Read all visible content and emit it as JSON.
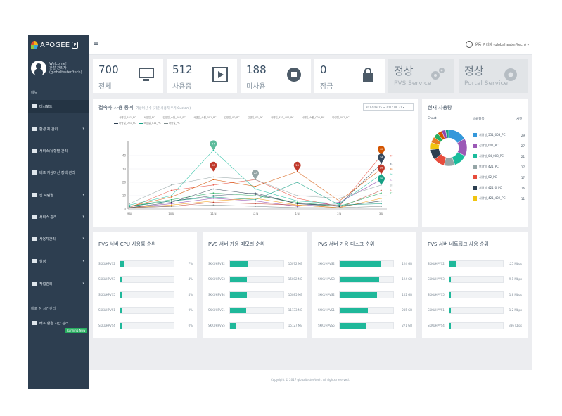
{
  "app": {
    "logo_text": "APOGEE",
    "logo_badge": "P"
  },
  "user": {
    "greeting": "Welcome!",
    "name": "관찰 관리자",
    "id": "(globaltester/tech)"
  },
  "sidebar": {
    "menu_label": "메뉴",
    "items": [
      {
        "label": "대시보드",
        "has_children": false,
        "active": true
      },
      {
        "label": "환경 제 관리",
        "has_children": true,
        "active": false
      },
      {
        "label": "서비스/유형별 관리",
        "has_children": false,
        "active": false
      },
      {
        "label": "배포 가상머신 정책 관리",
        "has_children": false,
        "active": false
      },
      {
        "label": "접 시템별",
        "has_children": true,
        "active": false
      },
      {
        "label": "서비스 관리",
        "has_children": true,
        "active": false
      },
      {
        "label": "사용자관리",
        "has_children": true,
        "active": false
      },
      {
        "label": "설정",
        "has_children": true,
        "active": false
      },
      {
        "label": "작업관리",
        "has_children": true,
        "active": false
      }
    ],
    "section2_label": "배포 정 시간관리",
    "section2_item": "배포 환경 시간 관리",
    "running_badge": "Running Now"
  },
  "topbar": {
    "user_label": "운동 관리자 (globaltester/tech) ▾"
  },
  "stats": [
    {
      "num": "700",
      "label": "전체"
    },
    {
      "num": "512",
      "label": "사용중"
    },
    {
      "num": "188",
      "label": "미사용"
    },
    {
      "num": "0",
      "label": "잠금"
    },
    {
      "num": "정상",
      "label": "PVS Service"
    },
    {
      "num": "정상",
      "label": "Portal Service"
    }
  ],
  "chart_panel": {
    "title": "접속자 사용 통계",
    "subtitle": "가상머신 수 (기준 사용자 주기 Custom)",
    "date_range": "2017.09.15 ~ 2017.09.21 ▾"
  },
  "chart_data": {
    "type": "line",
    "categories": [
      "9월",
      "10월",
      "11월",
      "12월",
      "1월",
      "2월",
      "3월"
    ],
    "ylim": [
      0,
      50
    ],
    "yticks": [
      0,
      10,
      20,
      30,
      40
    ],
    "grid": true,
    "legend_position": "top",
    "series": [
      {
        "name": "서영일_551_PC",
        "color": "#e74c3c",
        "values": [
          1,
          14,
          18,
          22,
          8,
          2,
          40
        ]
      },
      {
        "name": "서영일_PC",
        "color": "#34495e",
        "values": [
          2,
          6,
          10,
          12,
          4,
          3,
          34
        ]
      },
      {
        "name": "김영일_소원_001_PC",
        "color": "#1abc9c",
        "values": [
          3,
          10,
          44,
          15,
          6,
          4,
          26
        ]
      },
      {
        "name": "서영일_소원_001_PC",
        "color": "#8e44ad",
        "values": [
          1,
          4,
          8,
          6,
          2,
          5,
          22
        ]
      },
      {
        "name": "김영일_00_PC",
        "color": "#d35400",
        "values": [
          2,
          9,
          22,
          17,
          28,
          6,
          30
        ]
      },
      {
        "name": "김영일_02_PC",
        "color": "#95a5a6",
        "values": [
          4,
          18,
          24,
          22,
          10,
          8,
          18
        ]
      },
      {
        "name": "서영일_421_402_PC",
        "color": "#c0392b",
        "values": [
          1,
          2,
          5,
          4,
          3,
          1,
          14
        ]
      },
      {
        "name": "서영일_소원_002_PC",
        "color": "#27ae60",
        "values": [
          2,
          7,
          12,
          10,
          5,
          2,
          12
        ]
      },
      {
        "name": "다영일_002_PC",
        "color": "#f39c12",
        "values": [
          1,
          3,
          6,
          8,
          3,
          1,
          8
        ]
      },
      {
        "name": "다영일_001_PC",
        "color": "#2c3e50",
        "values": [
          1,
          5,
          15,
          11,
          4,
          2,
          6
        ]
      },
      {
        "name": "보영일_011_PC",
        "color": "#16a085",
        "values": [
          2,
          6,
          9,
          7,
          20,
          3,
          4
        ]
      },
      {
        "name": "다영일_PC",
        "color": "#7f8c8d",
        "values": [
          1,
          2,
          3,
          2,
          1,
          1,
          2
        ]
      }
    ],
    "markers": [
      {
        "label": "44",
        "x": "11월",
        "y": 44,
        "color": "#5dbb9b"
      },
      {
        "label": "28",
        "x": "11월",
        "y": 28,
        "color": "#c0392b"
      },
      {
        "label": "22",
        "x": "12월",
        "y": 22,
        "color": "#95a5a6"
      },
      {
        "label": "28",
        "x": "1월",
        "y": 28,
        "color": "#c0392b"
      },
      {
        "label": "40",
        "x": "3월",
        "y": 40,
        "color": "#d35400"
      },
      {
        "label": "34",
        "x": "3월",
        "y": 34,
        "color": "#34495e"
      },
      {
        "label": "26",
        "x": "3월",
        "y": 26,
        "color": "#c0392b"
      },
      {
        "label": "18",
        "x": "3월",
        "y": 18,
        "color": "#16a085"
      }
    ]
  },
  "users_panel": {
    "title": "현재 사용량",
    "head_chart": "Chart",
    "head_name": "발급항목",
    "head_count": "시간",
    "items": [
      {
        "name": "서영일_551_003_PC",
        "count": "29",
        "color": "#3498db"
      },
      {
        "name": "김영일_001_PC",
        "count": "27",
        "color": "#9b59b6"
      },
      {
        "name": "서영일_04_003_PC",
        "count": "21",
        "color": "#1abc9c"
      },
      {
        "name": "보영일_421_PC",
        "count": "17",
        "color": "#95a5a6"
      },
      {
        "name": "서영일_02_PC",
        "count": "17",
        "color": "#e74c3c"
      },
      {
        "name": "서영일_421_0_PC",
        "count": "16",
        "color": "#2c3e50"
      },
      {
        "name": "서영일_421_402_PC",
        "count": "11",
        "color": "#f1c40f"
      }
    ],
    "donut": [
      {
        "value": 29,
        "color": "#3498db"
      },
      {
        "value": 27,
        "color": "#9b59b6"
      },
      {
        "value": 21,
        "color": "#1abc9c"
      },
      {
        "value": 17,
        "color": "#95a5a6"
      },
      {
        "value": 17,
        "color": "#e74c3c"
      },
      {
        "value": 16,
        "color": "#2c3e50"
      },
      {
        "value": 11,
        "color": "#f1c40f"
      },
      {
        "value": 9,
        "color": "#e67e22"
      },
      {
        "value": 8,
        "color": "#27ae60"
      },
      {
        "value": 7,
        "color": "#d35400"
      },
      {
        "value": 6,
        "color": "#8e44ad"
      },
      {
        "value": 5,
        "color": "#16a085"
      }
    ]
  },
  "bar_panels": [
    {
      "title": "PVS 서버 CPU 사용률 순위",
      "rows": [
        {
          "name": "SKKUHPVS2",
          "pct": 7,
          "val": "7%"
        },
        {
          "name": "SKKUHPVS3",
          "pct": 4,
          "val": "4%"
        },
        {
          "name": "SKKUHPVS5",
          "pct": 4,
          "val": "4%"
        },
        {
          "name": "SKKUHPVS1",
          "pct": 0,
          "val": "0%"
        },
        {
          "name": "SKKUHPVS4",
          "pct": 0,
          "val": "0%"
        }
      ]
    },
    {
      "title": "PVS 서버 가용 메모리 순위",
      "rows": [
        {
          "name": "SKKUHPVS2",
          "pct": 33,
          "val": "15072 MB"
        },
        {
          "name": "SKKUHPVS3",
          "pct": 32,
          "val": "15082 MB"
        },
        {
          "name": "SKKUHPVS4",
          "pct": 31,
          "val": "15085 MB"
        },
        {
          "name": "SKKUHPVS1",
          "pct": 30,
          "val": "11133 MB"
        },
        {
          "name": "SKKUHPVS5",
          "pct": 12,
          "val": "15127 MB"
        }
      ]
    },
    {
      "title": "PVS 서버 가용 디스크 순위",
      "rows": [
        {
          "name": "SKKUHPVS2",
          "pct": 76,
          "val": "124 GB"
        },
        {
          "name": "SKKUHPVS3",
          "pct": 74,
          "val": "124 GB"
        },
        {
          "name": "SKKUHPVS2",
          "pct": 70,
          "val": "102 GB"
        },
        {
          "name": "SKKUHPVS1",
          "pct": 52,
          "val": "235 GB"
        },
        {
          "name": "SKKUHPVS5",
          "pct": 50,
          "val": "271 GB"
        }
      ]
    },
    {
      "title": "PVS 서버 네트워크 사용 순위",
      "rows": [
        {
          "name": "SKKUHPVS2",
          "pct": 12,
          "val": "125 Mbps"
        },
        {
          "name": "SKKUHPVS3",
          "pct": 1,
          "val": "9.1 Mbps"
        },
        {
          "name": "SKKUHPVS5",
          "pct": 0,
          "val": "1.8 Mbps"
        },
        {
          "name": "SKKUHPVS1",
          "pct": 0,
          "val": "1.2 Mbps"
        },
        {
          "name": "SKKUHPVS4",
          "pct": 0,
          "val": "386 Kbps"
        }
      ]
    }
  ],
  "footer": {
    "text": "Copyright © 2017 globaltester/tech. All rights reserved."
  }
}
